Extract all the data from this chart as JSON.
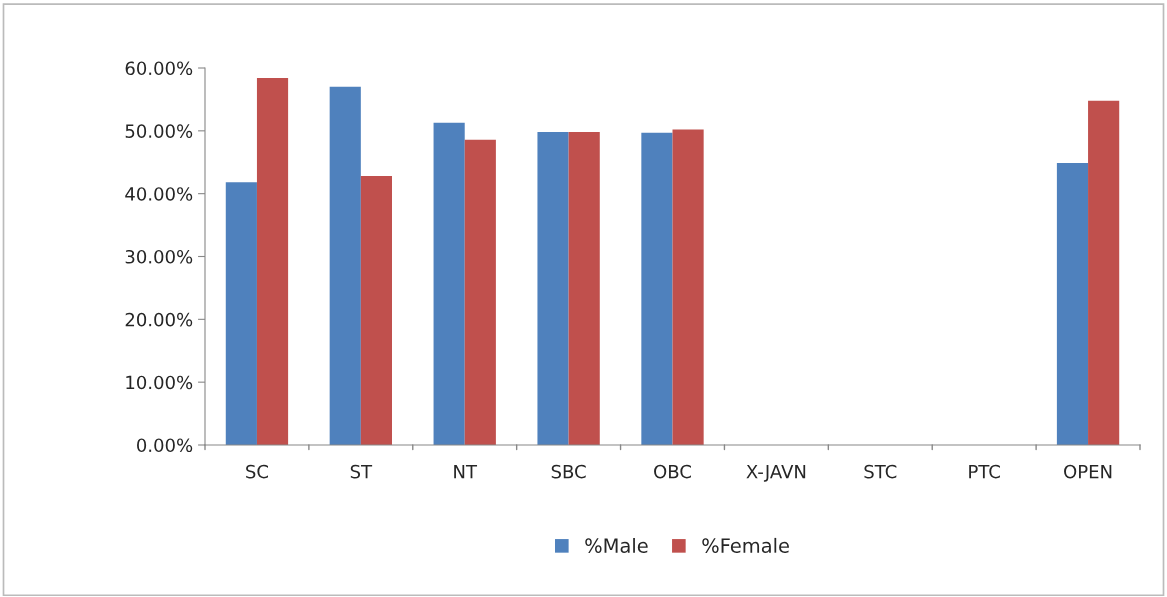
{
  "chart_data": {
    "type": "bar",
    "categories": [
      "SC",
      "ST",
      "NT",
      "SBC",
      "OBC",
      "X-JAVN",
      "STC",
      "PTC",
      "OPEN"
    ],
    "series": [
      {
        "name": "%Male",
        "color": "#4f81bd",
        "values": [
          41.8,
          57.0,
          51.3,
          49.8,
          49.7,
          0,
          0,
          0,
          44.9
        ]
      },
      {
        "name": "%Female",
        "color": "#c0504d",
        "values": [
          58.4,
          42.8,
          48.6,
          49.8,
          50.2,
          0,
          0,
          0,
          54.8
        ]
      }
    ],
    "ylim": [
      0,
      60
    ],
    "yticks": [
      {
        "value": 0,
        "label": "0.00%"
      },
      {
        "value": 10,
        "label": "10.00%"
      },
      {
        "value": 20,
        "label": "20.00%"
      },
      {
        "value": 30,
        "label": "30.00%"
      },
      {
        "value": 40,
        "label": "40.00%"
      },
      {
        "value": 50,
        "label": "50.00%"
      },
      {
        "value": 60,
        "label": "60.00%"
      }
    ],
    "grid": false,
    "legend": "bottom"
  }
}
